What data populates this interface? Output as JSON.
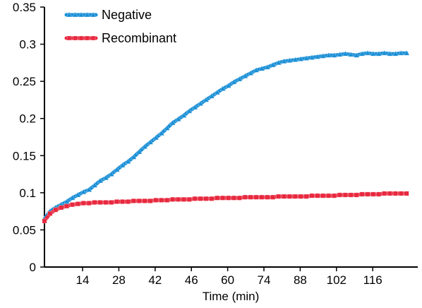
{
  "chart_data": {
    "type": "line",
    "title": "",
    "xlabel": "Time (min)",
    "ylabel": "",
    "xlim": [
      0,
      134
    ],
    "ylim": [
      0,
      0.35
    ],
    "xticks": [
      14,
      28,
      42,
      46,
      60,
      74,
      88,
      102,
      116
    ],
    "yticks": [
      0,
      0.05,
      0.1,
      0.15,
      0.2,
      0.25,
      0.3,
      0.35
    ],
    "ytick_labels": [
      "0",
      "0.05",
      "0.1",
      "0.15",
      "0.2",
      "0.25",
      "0.3",
      "0.35"
    ],
    "grid": false,
    "legend_position": "top-left",
    "series": [
      {
        "name": "Negative",
        "color": "#1a8fd6",
        "marker": "triangle",
        "x": [
          0,
          2,
          4,
          6,
          8,
          10,
          12,
          14,
          16,
          18,
          20,
          22,
          24,
          26,
          28,
          30,
          32,
          34,
          36,
          38,
          40,
          42,
          44,
          46,
          48,
          50,
          52,
          54,
          56,
          58,
          60,
          62,
          64,
          66,
          68,
          70,
          72,
          74,
          76,
          78,
          80,
          82,
          84,
          86,
          88,
          90,
          92,
          94,
          96,
          98,
          100,
          102,
          104,
          106,
          108,
          110,
          112,
          114,
          116,
          118,
          120,
          122,
          124,
          126,
          128,
          130
        ],
        "y": [
          0.065,
          0.075,
          0.08,
          0.084,
          0.088,
          0.093,
          0.097,
          0.101,
          0.104,
          0.11,
          0.116,
          0.12,
          0.125,
          0.131,
          0.137,
          0.142,
          0.148,
          0.155,
          0.162,
          0.168,
          0.174,
          0.18,
          0.187,
          0.194,
          0.199,
          0.204,
          0.21,
          0.215,
          0.22,
          0.225,
          0.23,
          0.235,
          0.24,
          0.244,
          0.249,
          0.253,
          0.257,
          0.261,
          0.265,
          0.267,
          0.269,
          0.272,
          0.275,
          0.277,
          0.278,
          0.279,
          0.28,
          0.281,
          0.282,
          0.283,
          0.284,
          0.285,
          0.285,
          0.286,
          0.287,
          0.286,
          0.285,
          0.287,
          0.288,
          0.287,
          0.287,
          0.288,
          0.287,
          0.287,
          0.288,
          0.288
        ]
      },
      {
        "name": "Recombinant",
        "color": "#e8283e",
        "marker": "square",
        "x": [
          0,
          2,
          4,
          6,
          8,
          10,
          12,
          14,
          16,
          18,
          20,
          22,
          24,
          26,
          28,
          30,
          32,
          34,
          36,
          38,
          40,
          42,
          44,
          46,
          48,
          50,
          52,
          54,
          56,
          58,
          60,
          62,
          64,
          66,
          68,
          70,
          72,
          74,
          76,
          78,
          80,
          82,
          84,
          86,
          88,
          90,
          92,
          94,
          96,
          98,
          100,
          102,
          104,
          106,
          108,
          110,
          112,
          114,
          116,
          118,
          120,
          122,
          124,
          126,
          128,
          130
        ],
        "y": [
          0.062,
          0.072,
          0.077,
          0.08,
          0.082,
          0.084,
          0.085,
          0.086,
          0.086,
          0.087,
          0.087,
          0.087,
          0.087,
          0.088,
          0.088,
          0.088,
          0.089,
          0.089,
          0.089,
          0.089,
          0.09,
          0.09,
          0.09,
          0.091,
          0.091,
          0.091,
          0.091,
          0.092,
          0.092,
          0.092,
          0.092,
          0.093,
          0.093,
          0.093,
          0.093,
          0.093,
          0.094,
          0.094,
          0.094,
          0.094,
          0.094,
          0.094,
          0.095,
          0.095,
          0.095,
          0.095,
          0.095,
          0.095,
          0.096,
          0.096,
          0.096,
          0.096,
          0.096,
          0.097,
          0.097,
          0.097,
          0.097,
          0.098,
          0.098,
          0.098,
          0.098,
          0.099,
          0.099,
          0.099,
          0.099,
          0.099
        ]
      }
    ]
  }
}
